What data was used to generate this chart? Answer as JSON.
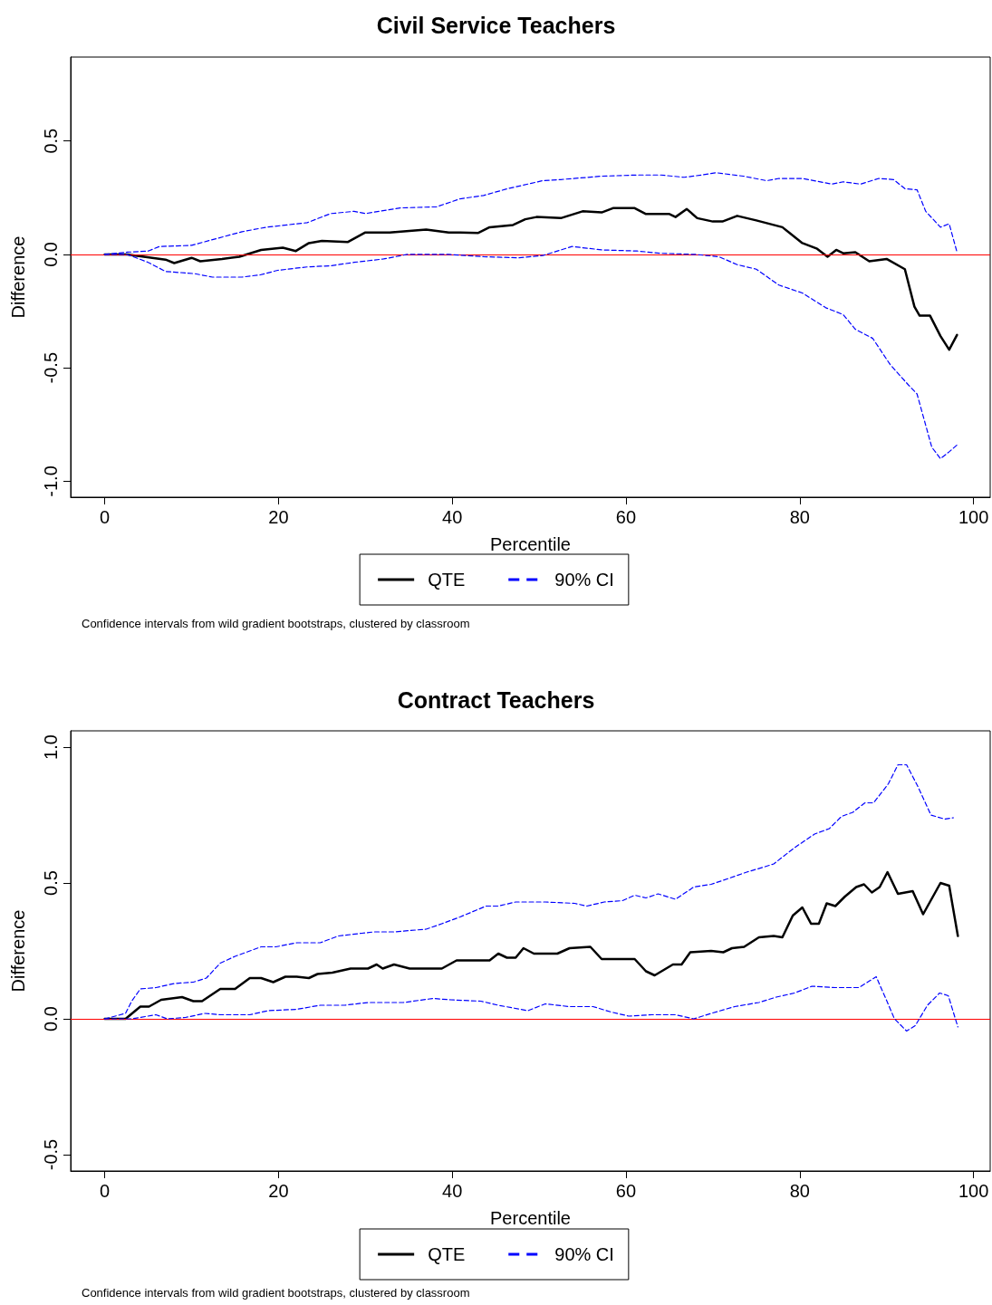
{
  "chart_data": [
    {
      "type": "line",
      "title": "Civil Service Teachers",
      "xlabel": "Percentile",
      "ylabel": "Difference",
      "xlim": [
        -3.92,
        101.92
      ],
      "ylim": [
        -1.07,
        0.87
      ],
      "xticks": [
        0,
        20,
        40,
        60,
        80,
        100
      ],
      "yticks": [
        {
          "value": -1,
          "label": "-1.0"
        },
        {
          "value": -0.5,
          "label": "-0.5"
        },
        {
          "value": 0,
          "label": "0.0"
        },
        {
          "value": 0.5,
          "label": "0.5"
        }
      ],
      "grid": false,
      "legend": "bottom",
      "ref_lines": [
        {
          "axis": "y",
          "value": 0,
          "label": null,
          "color": "#ff0000"
        }
      ],
      "annotations": [
        "Confidence intervals from wild gradient bootstraps, clustered by classroom"
      ],
      "series": [
        {
          "name": "QTE",
          "color": "#000000",
          "line_style": "solid",
          "x": [
            0,
            2.6,
            7,
            8,
            10,
            11,
            13.5,
            15.5,
            18,
            20.5,
            22,
            23.5,
            25,
            28,
            30,
            32.8,
            37,
            39.6,
            43,
            44.3,
            47,
            48.4,
            49.7,
            52.5,
            55,
            57.2,
            58.5,
            61,
            62.3,
            65,
            65.7,
            67,
            68.2,
            70,
            71.1,
            72.8,
            75,
            78,
            80.3,
            82,
            83.2,
            84.2,
            85,
            86.4,
            88,
            90,
            92.1,
            93.2,
            93.8,
            95,
            96.2,
            97.2,
            98.1
          ],
          "values": [
            0,
            0,
            -0.023,
            -0.038,
            -0.015,
            -0.03,
            -0.02,
            -0.01,
            0.02,
            0.03,
            0.015,
            0.05,
            0.06,
            0.055,
            0.097,
            0.097,
            0.11,
            0.097,
            0.095,
            0.12,
            0.13,
            0.155,
            0.165,
            0.16,
            0.19,
            0.185,
            0.204,
            0.204,
            0.178,
            0.178,
            0.165,
            0.2,
            0.16,
            0.145,
            0.145,
            0.17,
            0.15,
            0.12,
            0.05,
            0.025,
            -0.01,
            0.02,
            0.005,
            0.01,
            -0.03,
            -0.02,
            -0.065,
            -0.23,
            -0.27,
            -0.27,
            -0.36,
            -0.42,
            -0.355
          ]
        },
        {
          "name": "90% CI",
          "color": "#0000ff",
          "line_style": "dashed",
          "x": [
            0,
            2.6,
            5,
            6.3,
            10,
            12.4,
            15.8,
            18.6,
            23.3,
            26,
            28.7,
            30,
            34,
            38.2,
            40.9,
            43.6,
            46.4,
            50.4,
            52.5,
            57.2,
            61.3,
            64,
            66.7,
            68.7,
            70.4,
            73.5,
            76.2,
            77.6,
            80.3,
            83.7,
            85,
            87,
            89.1,
            90.8,
            92.1,
            93.5,
            94.5,
            96.2,
            97.2,
            98.1
          ],
          "values": [
            0,
            0.01,
            0.015,
            0.035,
            0.04,
            0.065,
            0.1,
            0.12,
            0.14,
            0.18,
            0.19,
            0.18,
            0.205,
            0.21,
            0.245,
            0.26,
            0.29,
            0.325,
            0.33,
            0.345,
            0.35,
            0.35,
            0.34,
            0.35,
            0.36,
            0.345,
            0.325,
            0.335,
            0.335,
            0.31,
            0.32,
            0.31,
            0.335,
            0.33,
            0.29,
            0.285,
            0.19,
            0.12,
            0.135,
            0.01
          ]
        },
        {
          "color": "#0000ff",
          "line_style": "dashed",
          "x": [
            0,
            2.6,
            5,
            7,
            10.4,
            12.4,
            15.8,
            17.9,
            19.9,
            23.3,
            26,
            28.7,
            32.1,
            34.8,
            39.6,
            43.6,
            47.6,
            50.4,
            53.8,
            57.2,
            61.3,
            64,
            68,
            70.7,
            72.8,
            75,
            77.6,
            80.3,
            83,
            85,
            86.4,
            88.4,
            90.4,
            92.5,
            93.5,
            95.2,
            96.2,
            97.2,
            98.1
          ],
          "values": [
            0,
            0,
            -0.035,
            -0.075,
            -0.085,
            -0.1,
            -0.1,
            -0.09,
            -0.07,
            -0.055,
            -0.05,
            -0.035,
            -0.02,
            0,
            0,
            -0.01,
            -0.015,
            -0.005,
            0.035,
            0.02,
            0.015,
            0.005,
            0,
            -0.01,
            -0.045,
            -0.065,
            -0.135,
            -0.17,
            -0.235,
            -0.265,
            -0.33,
            -0.37,
            -0.485,
            -0.575,
            -0.615,
            -0.85,
            -0.9,
            -0.87,
            -0.84
          ]
        }
      ]
    },
    {
      "type": "line",
      "title": "Contract Teachers",
      "xlabel": "Percentile",
      "ylabel": "Difference",
      "xlim": [
        -3.92,
        101.92
      ],
      "ylim": [
        -0.56,
        1.06
      ],
      "xticks": [
        0,
        20,
        40,
        60,
        80,
        100
      ],
      "yticks": [
        {
          "value": -0.5,
          "label": "-0.5"
        },
        {
          "value": 0,
          "label": "0.0"
        },
        {
          "value": 0.5,
          "label": "0.5"
        },
        {
          "value": 1,
          "label": "1.0"
        }
      ],
      "grid": false,
      "legend": "bottom",
      "ref_lines": [
        {
          "axis": "y",
          "value": 0,
          "label": null,
          "color": "#ff0000"
        }
      ],
      "annotations": [
        "Confidence intervals from wild gradient bootstraps, clustered by classroom"
      ],
      "series": [
        {
          "name": "QTE",
          "color": "#000000",
          "line_style": "solid",
          "x": [
            0,
            2.4,
            4.1,
            5.1,
            6.5,
            8.9,
            10.2,
            11.2,
            13.3,
            15,
            16.7,
            18,
            19.4,
            20.8,
            22.1,
            23.5,
            24.5,
            26.2,
            28.3,
            30.3,
            31.3,
            32,
            33.3,
            35.1,
            38.8,
            40.5,
            42.6,
            44.3,
            45.3,
            46.3,
            47.3,
            48.2,
            49.4,
            52.1,
            53.5,
            55.9,
            57.2,
            61,
            62.3,
            63.3,
            65.4,
            66.4,
            67.4,
            69.8,
            71.2,
            72.2,
            73.6,
            75.3,
            77,
            78,
            79.2,
            80.3,
            81.3,
            82.2,
            83.1,
            84.1,
            85.2,
            86.5,
            87.4,
            88.3,
            89.2,
            90.1,
            91.3,
            93,
            94.2,
            96.2,
            97.2,
            98.2
          ],
          "values": [
            0,
            0,
            0.045,
            0.045,
            0.07,
            0.08,
            0.065,
            0.065,
            0.11,
            0.11,
            0.15,
            0.15,
            0.135,
            0.155,
            0.155,
            0.15,
            0.165,
            0.17,
            0.185,
            0.185,
            0.2,
            0.185,
            0.2,
            0.185,
            0.185,
            0.215,
            0.215,
            0.215,
            0.24,
            0.225,
            0.225,
            0.26,
            0.24,
            0.24,
            0.26,
            0.265,
            0.22,
            0.22,
            0.175,
            0.16,
            0.2,
            0.2,
            0.245,
            0.25,
            0.245,
            0.26,
            0.265,
            0.3,
            0.305,
            0.3,
            0.38,
            0.41,
            0.35,
            0.35,
            0.425,
            0.415,
            0.45,
            0.485,
            0.495,
            0.465,
            0.485,
            0.54,
            0.46,
            0.47,
            0.385,
            0.5,
            0.49,
            0.305
          ]
        },
        {
          "name": "90% CI",
          "color": "#0000ff",
          "line_style": "dashed",
          "x": [
            0,
            2.4,
            3.1,
            4.1,
            5.9,
            8,
            10.2,
            11.7,
            13.3,
            15,
            18,
            19.7,
            22.1,
            24.8,
            26.9,
            29.6,
            31,
            33.3,
            37,
            38.8,
            40.9,
            43.9,
            45.3,
            47.3,
            50.7,
            54.1,
            55.5,
            57.5,
            59.6,
            61,
            62.3,
            63.7,
            65.7,
            67.8,
            69.8,
            71.2,
            73.9,
            76,
            77,
            79.4,
            81.7,
            83.4,
            84.8,
            86.1,
            87.5,
            88.5,
            90.2,
            91.3,
            92.3,
            93.6,
            95.1,
            96.7,
            97.7
          ],
          "values": [
            0,
            0.02,
            0.065,
            0.11,
            0.115,
            0.13,
            0.135,
            0.15,
            0.205,
            0.23,
            0.265,
            0.265,
            0.28,
            0.28,
            0.305,
            0.315,
            0.32,
            0.32,
            0.33,
            0.35,
            0.375,
            0.415,
            0.415,
            0.43,
            0.43,
            0.425,
            0.415,
            0.43,
            0.435,
            0.455,
            0.445,
            0.46,
            0.44,
            0.485,
            0.495,
            0.51,
            0.54,
            0.56,
            0.57,
            0.63,
            0.68,
            0.7,
            0.745,
            0.76,
            0.795,
            0.795,
            0.865,
            0.935,
            0.935,
            0.855,
            0.75,
            0.735,
            0.74
          ]
        },
        {
          "color": "#0000ff",
          "line_style": "dashed",
          "x": [
            0,
            3.1,
            5.9,
            7.2,
            9.3,
            11.5,
            13.3,
            16.7,
            18.8,
            22.1,
            24.8,
            27.6,
            30.3,
            34.4,
            37.8,
            39.8,
            43.3,
            45.3,
            48.7,
            50.7,
            53.5,
            56.2,
            58.3,
            60.3,
            63,
            65.7,
            67.8,
            69.8,
            72.5,
            75.3,
            77.3,
            79.4,
            81.4,
            84.1,
            86.8,
            87.8,
            88.8,
            90.1,
            90.9,
            92.3,
            93.3,
            94.7,
            96.1,
            97.1,
            98.2
          ],
          "values": [
            0,
            0,
            0.015,
            0,
            0.005,
            0.02,
            0.015,
            0.015,
            0.03,
            0.035,
            0.05,
            0.05,
            0.06,
            0.06,
            0.075,
            0.07,
            0.065,
            0.05,
            0.03,
            0.055,
            0.045,
            0.045,
            0.025,
            0.01,
            0.015,
            0.015,
            0,
            0.02,
            0.045,
            0.06,
            0.08,
            0.095,
            0.12,
            0.115,
            0.115,
            0.135,
            0.155,
            0.06,
            0,
            -0.045,
            -0.025,
            0.05,
            0.095,
            0.085,
            -0.03
          ]
        }
      ]
    }
  ]
}
